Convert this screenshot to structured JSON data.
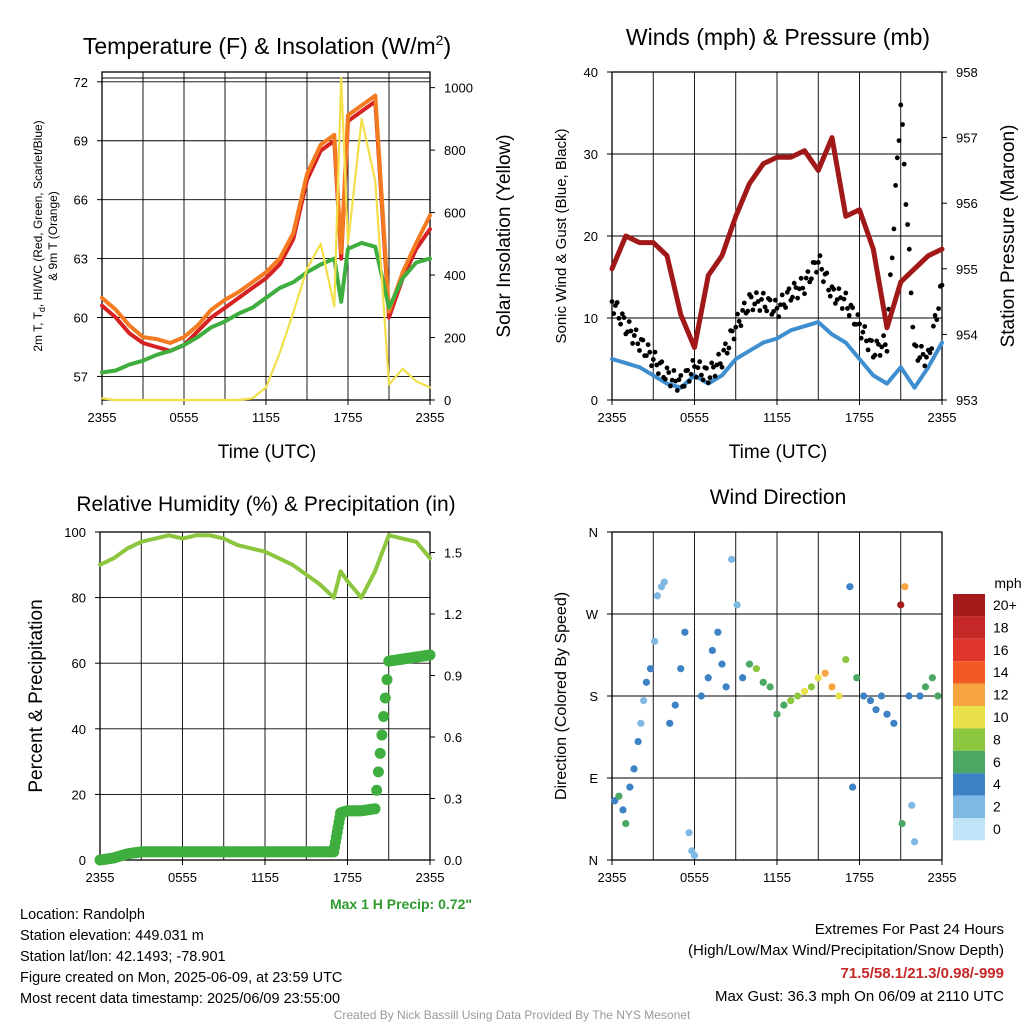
{
  "panels": {
    "temp": {
      "title": "Temperature (F) & Insolation (W/m",
      "title_sup": "2",
      "title_close": ")",
      "xlabel": "Time (UTC)",
      "ylabel_left_1": "2m T, T",
      "ylabel_left_sub": "d",
      "ylabel_left_2": ", HI/WC (Red, Green, Scarlet/Blue)",
      "ylabel_left_3": "& 9m T (Orange)",
      "ylabel_right": "Solar Insolation (Yellow)"
    },
    "wind": {
      "title": "Winds (mph) & Pressure (mb)",
      "xlabel": "Time (UTC)",
      "ylabel_left": "Sonic Wind & Gust (Blue, Black)",
      "ylabel_right": "Station Pressure (Maroon)"
    },
    "rh": {
      "title": "Relative Humidity (%) & Precipitation (in)",
      "ylabel_left": "Percent & Precipitation",
      "max_precip": "Max 1 H Precip: 0.72\""
    },
    "dir": {
      "title": "Wind Direction",
      "ylabel_left": "Direction (Colored By Speed)",
      "legend_title": "mph"
    }
  },
  "chart_data": [
    {
      "type": "line",
      "title": "Temperature (F) & Insolation (W/m2)",
      "xlabel": "Time (UTC)",
      "ylabel": "2m T, Td, HI/WC (Red, Green, Scarlet/Blue) & 9m T (Orange)",
      "ylabel_right": "Solar Insolation (Yellow)",
      "x_hours": [
        0,
        1,
        2,
        3,
        4,
        5,
        6,
        7,
        8,
        9,
        10,
        11,
        12,
        13,
        14,
        15,
        16,
        17,
        17.5,
        18,
        19,
        20,
        21,
        22,
        23,
        24
      ],
      "x_ticks": [
        "2355",
        "0555",
        "1155",
        "1755",
        "2355"
      ],
      "ylim": [
        55.8,
        72.5
      ],
      "ylim_right": [
        0,
        1050
      ],
      "y_ticks": [
        57,
        60,
        63,
        66,
        69,
        72
      ],
      "y_ticks_right": [
        0,
        200,
        400,
        600,
        800,
        1000
      ],
      "grid": true,
      "series": [
        {
          "name": "2m T",
          "color": "#d62222",
          "axis": "left",
          "values": [
            60.6,
            60.0,
            59.2,
            58.7,
            58.5,
            58.3,
            58.6,
            59.3,
            60.0,
            60.5,
            61.0,
            61.5,
            62.0,
            62.7,
            64.0,
            67.0,
            68.5,
            69.0,
            63.0,
            70.0,
            70.5,
            71.0,
            60.0,
            62.0,
            63.5,
            64.5
          ]
        },
        {
          "name": "9m T",
          "color": "#f47b20",
          "axis": "left",
          "values": [
            61.0,
            60.4,
            59.6,
            59.0,
            58.9,
            58.7,
            59.0,
            59.6,
            60.4,
            60.9,
            61.3,
            61.8,
            62.3,
            63.0,
            64.3,
            67.3,
            68.8,
            69.3,
            63.3,
            70.3,
            70.8,
            71.3,
            60.3,
            62.3,
            63.8,
            65.2
          ]
        },
        {
          "name": "Td",
          "color": "#3fae3f",
          "axis": "left",
          "values": [
            57.2,
            57.3,
            57.6,
            57.8,
            58.1,
            58.3,
            58.6,
            59.0,
            59.5,
            59.8,
            60.2,
            60.5,
            61.0,
            61.5,
            61.8,
            62.3,
            62.7,
            63.0,
            60.8,
            63.5,
            63.8,
            63.6,
            60.5,
            62.0,
            62.8,
            63.0
          ]
        },
        {
          "name": "Solar",
          "color": "#f2df4a",
          "axis": "right",
          "values": [
            5,
            0,
            0,
            0,
            0,
            0,
            0,
            0,
            0,
            0,
            0,
            5,
            40,
            150,
            280,
            420,
            500,
            300,
            1030,
            500,
            900,
            700,
            50,
            100,
            60,
            40
          ]
        }
      ]
    },
    {
      "type": "line",
      "title": "Winds (mph) & Pressure (mb)",
      "xlabel": "Time (UTC)",
      "ylabel": "Sonic Wind & Gust (Blue, Black)",
      "ylabel_right": "Station Pressure (Maroon)",
      "x_hours": [
        0,
        1,
        2,
        3,
        4,
        5,
        6,
        7,
        8,
        9,
        10,
        11,
        12,
        13,
        14,
        15,
        16,
        17,
        18,
        19,
        20,
        21,
        22,
        23,
        24
      ],
      "x_ticks": [
        "2355",
        "0555",
        "1155",
        "1755",
        "2355"
      ],
      "ylim": [
        0,
        40
      ],
      "ylim_right": [
        953,
        958
      ],
      "y_ticks": [
        0,
        10,
        20,
        30,
        40
      ],
      "y_ticks_right": [
        953,
        954,
        955,
        956,
        957,
        958
      ],
      "grid": true,
      "series": [
        {
          "name": "Wind",
          "color": "#3f8fd0",
          "axis": "left",
          "style": "line",
          "values": [
            5,
            4.5,
            4,
            3,
            2,
            1.5,
            3,
            2,
            3,
            5,
            6,
            7,
            7.5,
            8.5,
            9,
            9.5,
            8,
            7,
            5,
            3,
            2,
            4,
            1.5,
            4,
            7
          ]
        },
        {
          "name": "Gust",
          "color": "#000000",
          "axis": "left",
          "style": "dots",
          "values": [
            12,
            9,
            7,
            5,
            3,
            2,
            4,
            3,
            5,
            9,
            12,
            12,
            11,
            13,
            14,
            17,
            13,
            12,
            9,
            6,
            7,
            36.3,
            6,
            5,
            14
          ]
        },
        {
          "name": "Pressure",
          "color": "#a01818",
          "axis": "right",
          "style": "line",
          "values": [
            955.0,
            955.5,
            955.4,
            955.4,
            955.2,
            954.3,
            953.8,
            954.9,
            955.2,
            955.8,
            956.3,
            956.6,
            956.7,
            956.7,
            956.8,
            956.5,
            957.0,
            955.8,
            955.9,
            955.3,
            954.1,
            954.8,
            955.0,
            955.2,
            955.3
          ]
        }
      ]
    },
    {
      "type": "line",
      "title": "Relative Humidity (%) & Precipitation (in)",
      "ylabel": "Percent & Precipitation",
      "x_hours": [
        0,
        1,
        2,
        3,
        4,
        5,
        6,
        7,
        8,
        9,
        10,
        11,
        12,
        13,
        14,
        15,
        16,
        17,
        17.5,
        18,
        19,
        20,
        21,
        22,
        23,
        24
      ],
      "x_ticks": [
        "2355",
        "0555",
        "1155",
        "1755",
        "2355"
      ],
      "ylim": [
        0,
        100
      ],
      "ylim_right": [
        0,
        1.6
      ],
      "y_ticks": [
        0,
        20,
        40,
        60,
        80,
        100
      ],
      "y_ticks_right": [
        0.0,
        0.3,
        0.6,
        0.9,
        1.2,
        1.5
      ],
      "grid": true,
      "series": [
        {
          "name": "RH",
          "color": "#8cc63f",
          "axis": "left",
          "style": "line",
          "values": [
            90,
            92,
            95,
            97,
            98,
            99,
            98,
            99,
            99,
            98,
            96,
            95,
            94,
            92,
            90,
            87,
            84,
            80,
            88,
            85,
            80,
            88,
            99,
            98,
            97,
            92
          ]
        },
        {
          "name": "Precip",
          "color": "#3fae3f",
          "axis": "right",
          "style": "dots",
          "values": [
            0,
            0.01,
            0.03,
            0.04,
            0.04,
            0.04,
            0.04,
            0.04,
            0.04,
            0.04,
            0.04,
            0.04,
            0.04,
            0.04,
            0.04,
            0.04,
            0.04,
            0.04,
            0.23,
            0.24,
            0.24,
            0.25,
            0.97,
            0.98,
            0.99,
            1.0
          ]
        }
      ],
      "annotations": [
        "Max 1 H Precip: 0.72\""
      ]
    },
    {
      "type": "scatter",
      "title": "Wind Direction",
      "ylabel": "Direction (Colored By Speed)",
      "x_ticks": [
        "2355",
        "0555",
        "1155",
        "1755",
        "2355"
      ],
      "y_ticks": [
        "N",
        "E",
        "S",
        "W",
        "N"
      ],
      "ylim": [
        0,
        360
      ],
      "grid": true,
      "points": [
        {
          "h": 0.2,
          "dir": 65,
          "spd": 4
        },
        {
          "h": 0.5,
          "dir": 70,
          "spd": 5
        },
        {
          "h": 0.8,
          "dir": 55,
          "spd": 4
        },
        {
          "h": 1.0,
          "dir": 40,
          "spd": 5
        },
        {
          "h": 1.3,
          "dir": 80,
          "spd": 3
        },
        {
          "h": 1.6,
          "dir": 100,
          "spd": 3
        },
        {
          "h": 1.9,
          "dir": 130,
          "spd": 3
        },
        {
          "h": 2.1,
          "dir": 150,
          "spd": 2
        },
        {
          "h": 2.3,
          "dir": 175,
          "spd": 2
        },
        {
          "h": 2.5,
          "dir": 195,
          "spd": 3
        },
        {
          "h": 2.8,
          "dir": 210,
          "spd": 3
        },
        {
          "h": 3.1,
          "dir": 240,
          "spd": 2
        },
        {
          "h": 3.3,
          "dir": 290,
          "spd": 1
        },
        {
          "h": 3.6,
          "dir": 300,
          "spd": 1
        },
        {
          "h": 3.8,
          "dir": 305,
          "spd": 1
        },
        {
          "h": 4.2,
          "dir": 150,
          "spd": 3
        },
        {
          "h": 4.6,
          "dir": 170,
          "spd": 4
        },
        {
          "h": 5.0,
          "dir": 210,
          "spd": 4
        },
        {
          "h": 5.3,
          "dir": 250,
          "spd": 3
        },
        {
          "h": 5.6,
          "dir": 30,
          "spd": 1
        },
        {
          "h": 5.8,
          "dir": 10,
          "spd": 1
        },
        {
          "h": 6.0,
          "dir": 5,
          "spd": 1
        },
        {
          "h": 6.5,
          "dir": 180,
          "spd": 3
        },
        {
          "h": 7.0,
          "dir": 200,
          "spd": 4
        },
        {
          "h": 7.3,
          "dir": 230,
          "spd": 4
        },
        {
          "h": 7.7,
          "dir": 250,
          "spd": 4
        },
        {
          "h": 8.0,
          "dir": 215,
          "spd": 4
        },
        {
          "h": 8.3,
          "dir": 190,
          "spd": 3
        },
        {
          "h": 8.7,
          "dir": 330,
          "spd": 1
        },
        {
          "h": 9.1,
          "dir": 280,
          "spd": 2
        },
        {
          "h": 9.5,
          "dir": 200,
          "spd": 3
        },
        {
          "h": 10.0,
          "dir": 215,
          "spd": 6
        },
        {
          "h": 10.5,
          "dir": 210,
          "spd": 7
        },
        {
          "h": 11.0,
          "dir": 195,
          "spd": 5
        },
        {
          "h": 11.5,
          "dir": 190,
          "spd": 6
        },
        {
          "h": 12.0,
          "dir": 160,
          "spd": 5
        },
        {
          "h": 12.5,
          "dir": 170,
          "spd": 6
        },
        {
          "h": 13.0,
          "dir": 175,
          "spd": 8
        },
        {
          "h": 13.5,
          "dir": 180,
          "spd": 7
        },
        {
          "h": 14.0,
          "dir": 185,
          "spd": 9
        },
        {
          "h": 14.5,
          "dir": 190,
          "spd": 8
        },
        {
          "h": 15.0,
          "dir": 200,
          "spd": 10
        },
        {
          "h": 15.5,
          "dir": 205,
          "spd": 11
        },
        {
          "h": 16.0,
          "dir": 190,
          "spd": 12
        },
        {
          "h": 16.5,
          "dir": 180,
          "spd": 9
        },
        {
          "h": 17.0,
          "dir": 220,
          "spd": 7
        },
        {
          "h": 17.3,
          "dir": 300,
          "spd": 4
        },
        {
          "h": 17.5,
          "dir": 80,
          "spd": 4
        },
        {
          "h": 17.8,
          "dir": 200,
          "spd": 5
        },
        {
          "h": 18.3,
          "dir": 180,
          "spd": 4
        },
        {
          "h": 18.8,
          "dir": 175,
          "spd": 3
        },
        {
          "h": 19.2,
          "dir": 165,
          "spd": 4
        },
        {
          "h": 19.6,
          "dir": 180,
          "spd": 4
        },
        {
          "h": 20.0,
          "dir": 160,
          "spd": 3
        },
        {
          "h": 20.5,
          "dir": 150,
          "spd": 4
        },
        {
          "h": 21.0,
          "dir": 280,
          "spd": 20
        },
        {
          "h": 21.1,
          "dir": 40,
          "spd": 6
        },
        {
          "h": 21.3,
          "dir": 300,
          "spd": 12
        },
        {
          "h": 21.6,
          "dir": 180,
          "spd": 3
        },
        {
          "h": 21.8,
          "dir": 60,
          "spd": 2
        },
        {
          "h": 22.0,
          "dir": 20,
          "spd": 2
        },
        {
          "h": 22.4,
          "dir": 180,
          "spd": 4
        },
        {
          "h": 22.8,
          "dir": 190,
          "spd": 6
        },
        {
          "h": 23.3,
          "dir": 200,
          "spd": 5
        },
        {
          "h": 23.7,
          "dir": 180,
          "spd": 6
        }
      ],
      "legend": {
        "title": "mph",
        "labels": [
          "20+",
          "18",
          "16",
          "14",
          "12",
          "10",
          "8",
          "6",
          "4",
          "2",
          "0"
        ],
        "colors": [
          "#a51b1b",
          "#c62828",
          "#e0352b",
          "#f15a24",
          "#f7a440",
          "#e8e04a",
          "#8dc63f",
          "#4aa862",
          "#3c82c4",
          "#7fb8e3",
          "#bfe3f7"
        ]
      }
    }
  ],
  "info": {
    "location": "Location: Randolph",
    "elevation": "Station elevation: 449.031 m",
    "latlon": "Station lat/lon: 42.1493; -78.901",
    "created": "Figure created on Mon, 2025-06-09, at 23:59 UTC",
    "recent": "Most recent data timestamp: 2025/06/09 23:55:00"
  },
  "extremes": {
    "title": "Extremes For Past 24 Hours",
    "subtitle": "(High/Low/Max Wind/Precipitation/Snow Depth)",
    "values": "71.5/58.1/21.3/0.98/-999",
    "gust": "Max Gust: 36.3 mph On 06/09 at 2110 UTC",
    "value_color": "#c62828"
  },
  "credit": "Created By Nick Bassill Using Data Provided By The NYS Mesonet"
}
